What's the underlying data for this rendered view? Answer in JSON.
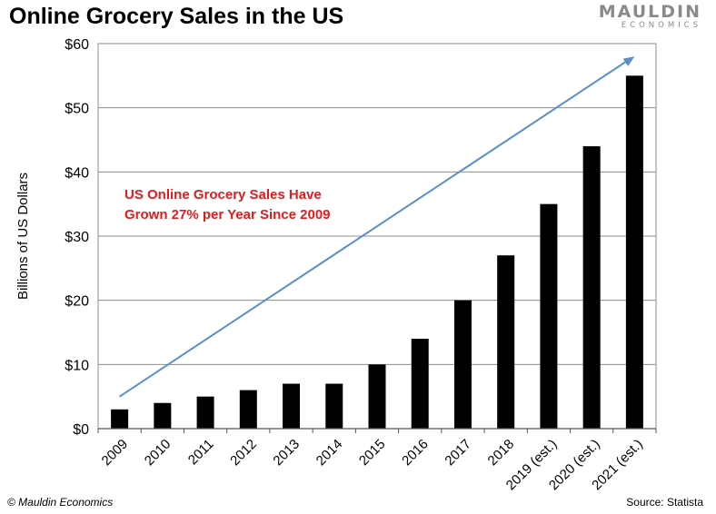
{
  "header": {
    "title": "Online Grocery Sales in the US",
    "brand_line1": "MAULDIN",
    "brand_line2": "ECONOMICS"
  },
  "footer": {
    "copyright": "© Mauldin Economics",
    "source": "Source: Statista"
  },
  "annotation": {
    "line1": "US Online Grocery Sales Have",
    "line2": "Grown 27% per Year Since 2009",
    "color": "#e8191b"
  },
  "chart_data": {
    "type": "bar",
    "title": "Online Grocery Sales in the US",
    "ylabel": "Billions of US Dollars",
    "xlabel": "",
    "categories": [
      "2009",
      "2010",
      "2011",
      "2012",
      "2013",
      "2014",
      "2015",
      "2016",
      "2017",
      "2018",
      "2019 (est.)",
      "2020 (est.)",
      "2021 (est.)"
    ],
    "values": [
      3,
      4,
      5,
      6,
      7,
      7,
      10,
      14,
      20,
      27,
      35,
      44,
      55
    ],
    "ylim": [
      0,
      60
    ],
    "yticks": [
      0,
      10,
      20,
      30,
      40,
      50,
      60
    ],
    "ytick_labels": [
      "$0",
      "$10",
      "$20",
      "$30",
      "$40",
      "$50",
      "$60"
    ],
    "grid": true,
    "bar_color": "#000000",
    "trend_arrow": {
      "color": "#5b8fc9",
      "from": [
        "2009",
        5
      ],
      "to": [
        "2021 (est.)",
        58
      ]
    }
  }
}
